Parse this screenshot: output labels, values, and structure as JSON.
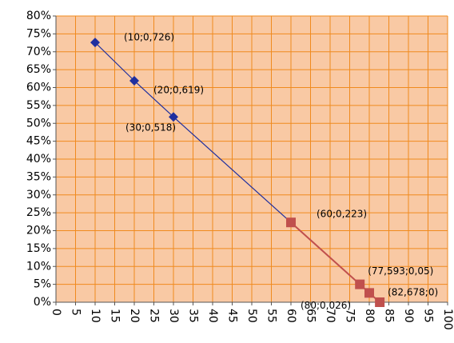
{
  "chart_data": {
    "type": "scatter",
    "xlim": [
      0,
      100
    ],
    "xticks": [
      0,
      5,
      10,
      15,
      20,
      25,
      30,
      35,
      40,
      45,
      50,
      55,
      60,
      65,
      70,
      75,
      80,
      85,
      90,
      95,
      100
    ],
    "ylim": [
      0,
      80
    ],
    "yticks": [
      {
        "value": 0,
        "label": "0%"
      },
      {
        "value": 5,
        "label": "5%"
      },
      {
        "value": 10,
        "label": "10%"
      },
      {
        "value": 15,
        "label": "15%"
      },
      {
        "value": 20,
        "label": "20%"
      },
      {
        "value": 25,
        "label": "25%"
      },
      {
        "value": 30,
        "label": "30%"
      },
      {
        "value": 35,
        "label": "35%"
      },
      {
        "value": 40,
        "label": "40%"
      },
      {
        "value": 45,
        "label": "45%"
      },
      {
        "value": 50,
        "label": "50%"
      },
      {
        "value": 55,
        "label": "55%"
      },
      {
        "value": 60,
        "label": "60%"
      },
      {
        "value": 65,
        "label": "65%"
      },
      {
        "value": 70,
        "label": "70%"
      },
      {
        "value": 75,
        "label": "75%"
      },
      {
        "value": 80,
        "label": "80%"
      }
    ],
    "grid": true,
    "series": [
      {
        "color": "#1f2f9f",
        "marker": "diamond",
        "x": [
          10,
          20,
          30,
          60
        ],
        "values": [
          72.6,
          61.9,
          51.8,
          22.3
        ],
        "value_labels": [
          "(10;0,726)",
          "(20;0,619)",
          "(30;0,518)",
          "(60;0,223)"
        ]
      },
      {
        "color": "#c0504d",
        "marker": "square",
        "x": [
          60,
          77.593,
          80,
          82.678
        ],
        "values": [
          22.3,
          5,
          2.6,
          0
        ],
        "value_labels": [
          "(60;0,223)",
          "(77,593;0,05)",
          "(80;0,026)",
          "(82,678;0)"
        ]
      }
    ]
  }
}
